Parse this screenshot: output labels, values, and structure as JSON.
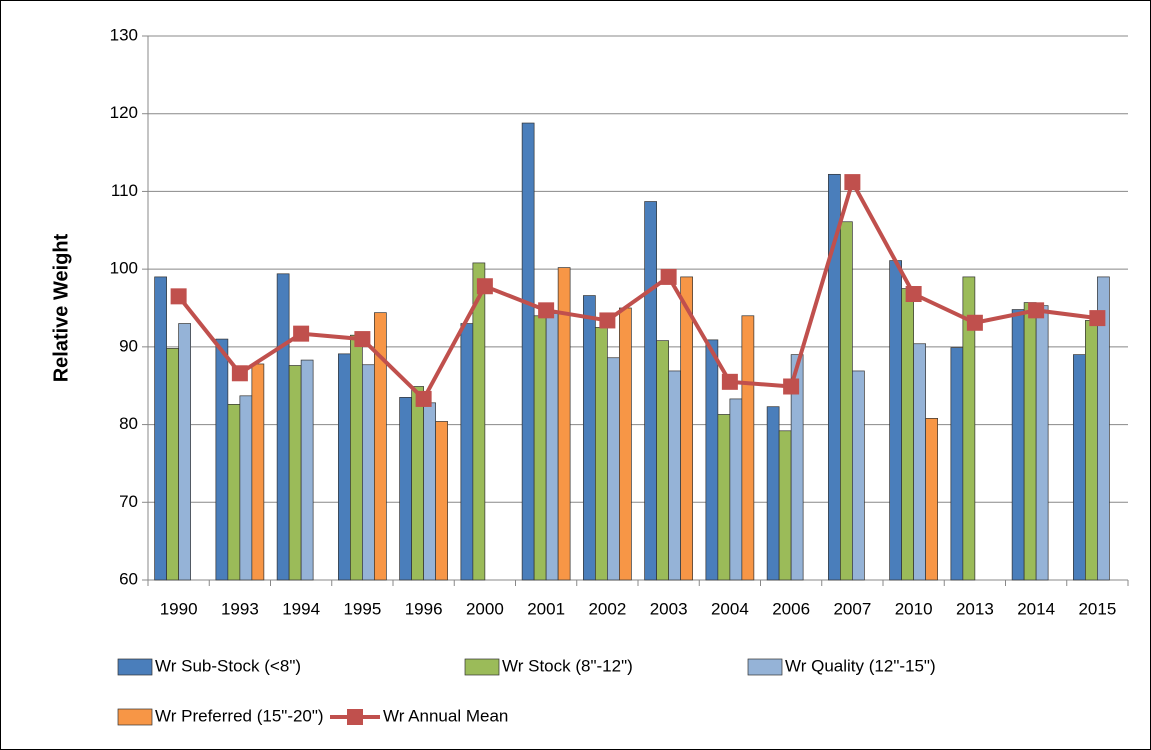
{
  "chart_data": {
    "type": "bar-line",
    "y_label": "Relative Weight",
    "categories": [
      "1990",
      "1993",
      "1994",
      "1995",
      "1996",
      "2000",
      "2001",
      "2002",
      "2003",
      "2004",
      "2006",
      "2007",
      "2010",
      "2013",
      "2014",
      "2015"
    ],
    "series": [
      {
        "name": "Wr Sub-Stock (<8\")",
        "type": "bar",
        "color": "#4a7ebb",
        "values": [
          99,
          91,
          99.4,
          89.1,
          83.5,
          93,
          118.8,
          96.6,
          108.7,
          90.9,
          82.3,
          112.2,
          101.1,
          89.9,
          94.8,
          89
        ]
      },
      {
        "name": "Wr Stock (8\"-12\")",
        "type": "bar",
        "color": "#9bbb59",
        "values": [
          89.8,
          82.6,
          87.6,
          91.5,
          84.9,
          100.8,
          94,
          92.5,
          90.8,
          81.3,
          79.2,
          106.1,
          97.5,
          99,
          95.7,
          93.4
        ]
      },
      {
        "name": "Wr Quality (12\"-15\")",
        "type": "bar",
        "color": "#95b3d7",
        "values": [
          93,
          83.7,
          88.3,
          87.7,
          82.8,
          null,
          94.3,
          88.6,
          86.9,
          83.3,
          89,
          86.9,
          90.4,
          null,
          95.3,
          99
        ]
      },
      {
        "name": "Wr Preferred (15\"-20\")",
        "type": "bar",
        "color": "#f79646",
        "values": [
          null,
          87.8,
          null,
          94.4,
          80.4,
          null,
          100.2,
          95,
          99,
          94,
          null,
          null,
          80.8,
          null,
          null,
          null
        ]
      },
      {
        "name": "Wr Annual Mean",
        "type": "line",
        "color": "#c0504d",
        "values": [
          96.5,
          86.6,
          91.7,
          91,
          83.3,
          97.8,
          94.7,
          93.4,
          99,
          85.5,
          84.9,
          111.2,
          96.8,
          93.1,
          94.7,
          93.7
        ]
      }
    ],
    "ylim": [
      60,
      130
    ],
    "yticks": [
      60,
      70,
      80,
      90,
      100,
      110,
      120,
      130
    ],
    "grid": true
  }
}
